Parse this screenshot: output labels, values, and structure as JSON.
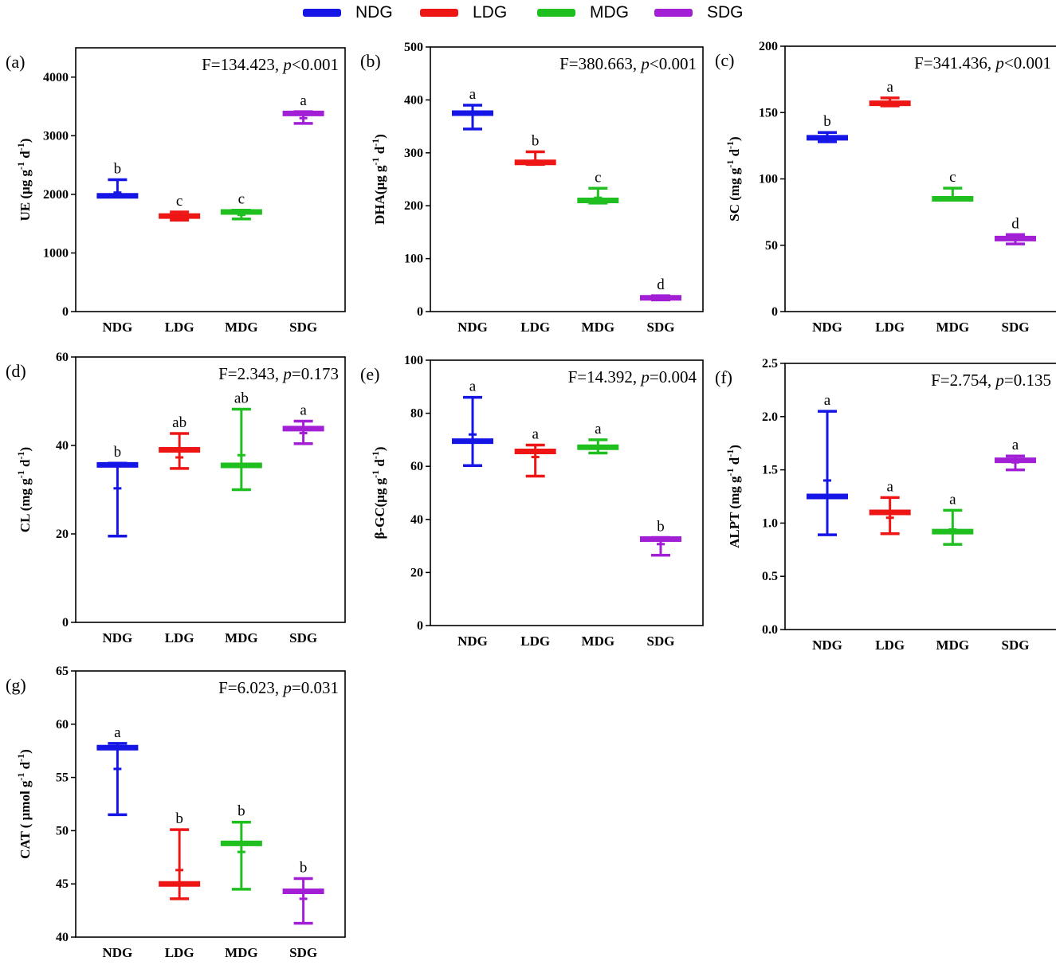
{
  "legend": [
    {
      "label": "NDG",
      "color": "#1515e6"
    },
    {
      "label": "LDG",
      "color": "#ee1515"
    },
    {
      "label": "MDG",
      "color": "#1fbf1f"
    },
    {
      "label": "SDG",
      "color": "#a21fd6"
    }
  ],
  "chart_data": [
    {
      "type": "box",
      "panel": "(a)",
      "stat": {
        "F": "F=134.423, ",
        "p_symbol": "p",
        "p": "<0.001"
      },
      "ylabel": {
        "base": "UE (μg g",
        "exp1": "-1",
        "mid": " d",
        "exp2": "-1",
        "end": ")"
      },
      "ylim": [
        0,
        4500
      ],
      "yticks": [
        0,
        1000,
        2000,
        3000,
        4000
      ],
      "tick_labels": [
        "0",
        "1000",
        "2000",
        "3000",
        "4000"
      ],
      "categories": [
        "NDG",
        "LDG",
        "MDG",
        "SDG"
      ],
      "series": [
        {
          "name": "NDG",
          "min": 1960,
          "mean": 2030,
          "median": 1975,
          "max": 2250,
          "letter": "b"
        },
        {
          "name": "LDG",
          "min": 1560,
          "mean": 1640,
          "median": 1630,
          "max": 1700,
          "letter": "c"
        },
        {
          "name": "MDG",
          "min": 1580,
          "mean": 1650,
          "median": 1700,
          "max": 1730,
          "letter": "c"
        },
        {
          "name": "SDG",
          "min": 3210,
          "mean": 3300,
          "median": 3380,
          "max": 3410,
          "letter": "a"
        }
      ]
    },
    {
      "type": "box",
      "panel": "(b)",
      "stat": {
        "F": "F=380.663, ",
        "p_symbol": "p",
        "p": "<0.001"
      },
      "ylabel": {
        "base": "DHA(μg g",
        "exp1": "-1",
        "mid": " d",
        "exp2": "-1",
        "end": ")"
      },
      "ylim": [
        0,
        500
      ],
      "yticks": [
        0,
        100,
        200,
        300,
        400,
        500
      ],
      "tick_labels": [
        "0",
        "100",
        "200",
        "300",
        "400",
        "500"
      ],
      "categories": [
        "NDG",
        "LDG",
        "MDG",
        "SDG"
      ],
      "series": [
        {
          "name": "NDG",
          "min": 345,
          "mean": 372,
          "median": 375,
          "max": 390,
          "letter": "a"
        },
        {
          "name": "LDG",
          "min": 278,
          "mean": 285,
          "median": 282,
          "max": 302,
          "letter": "b"
        },
        {
          "name": "MDG",
          "min": 205,
          "mean": 215,
          "median": 210,
          "max": 233,
          "letter": "c"
        },
        {
          "name": "SDG",
          "min": 22,
          "mean": 25,
          "median": 26,
          "max": 30,
          "letter": "d"
        }
      ]
    },
    {
      "type": "box",
      "panel": "(c)",
      "stat": {
        "F": "F=341.436, ",
        "p_symbol": "p",
        "p": "<0.001"
      },
      "ylabel": {
        "base": "SC (mg g",
        "exp1": "-1",
        "mid": " d",
        "exp2": "-1",
        "end": ")"
      },
      "ylim": [
        0,
        200
      ],
      "yticks": [
        0,
        50,
        100,
        150,
        200
      ],
      "tick_labels": [
        "0",
        "50",
        "100",
        "150",
        "200"
      ],
      "categories": [
        "NDG",
        "LDG",
        "MDG",
        "SDG"
      ],
      "series": [
        {
          "name": "NDG",
          "min": 128,
          "mean": 131,
          "median": 131,
          "max": 135,
          "letter": "b"
        },
        {
          "name": "LDG",
          "min": 155,
          "mean": 157,
          "median": 157,
          "max": 161,
          "letter": "a"
        },
        {
          "name": "MDG",
          "min": 84,
          "mean": 86,
          "median": 85,
          "max": 93,
          "letter": "c"
        },
        {
          "name": "SDG",
          "min": 51,
          "mean": 54,
          "median": 55,
          "max": 58,
          "letter": "d"
        }
      ]
    },
    {
      "type": "box",
      "panel": "(d)",
      "stat": {
        "F": "F=2.343, ",
        "p_symbol": "p",
        "p": "=0.173"
      },
      "ylabel": {
        "base": "CL (mg g",
        "exp1": "-1",
        "mid": " d",
        "exp2": "-1",
        "end": ")"
      },
      "ylim": [
        0,
        60
      ],
      "yticks": [
        0,
        20,
        40,
        60
      ],
      "tick_labels": [
        "0",
        "20",
        "40",
        "60"
      ],
      "categories": [
        "NDG",
        "LDG",
        "MDG",
        "SDG"
      ],
      "series": [
        {
          "name": "NDG",
          "min": 19.5,
          "mean": 30.3,
          "median": 35.6,
          "max": 36.0,
          "letter": "b"
        },
        {
          "name": "LDG",
          "min": 34.8,
          "mean": 37.3,
          "median": 39.0,
          "max": 42.7,
          "letter": "ab"
        },
        {
          "name": "MDG",
          "min": 30.0,
          "mean": 37.8,
          "median": 35.5,
          "max": 48.2,
          "letter": "ab"
        },
        {
          "name": "SDG",
          "min": 40.4,
          "mean": 42.8,
          "median": 43.8,
          "max": 45.5,
          "letter": "a"
        }
      ]
    },
    {
      "type": "box",
      "panel": "(e)",
      "stat": {
        "F": "F=14.392, ",
        "p_symbol": "p",
        "p": "=0.004"
      },
      "ylabel": {
        "base": "β-GC(μg g",
        "exp1": "-1",
        "mid": " d",
        "exp2": "-1",
        "end": ")"
      },
      "ylim": [
        0,
        100
      ],
      "yticks": [
        0,
        20,
        40,
        60,
        80,
        100
      ],
      "tick_labels": [
        "0",
        "20",
        "40",
        "60",
        "80",
        "100"
      ],
      "categories": [
        "NDG",
        "LDG",
        "MDG",
        "SDG"
      ],
      "series": [
        {
          "name": "NDG",
          "min": 60.3,
          "mean": 72.0,
          "median": 69.5,
          "max": 86.0,
          "letter": "a"
        },
        {
          "name": "LDG",
          "min": 56.3,
          "mean": 63.5,
          "median": 65.6,
          "max": 68.0,
          "letter": "a"
        },
        {
          "name": "MDG",
          "min": 65.0,
          "mean": 67.3,
          "median": 67.2,
          "max": 70.0,
          "letter": "a"
        },
        {
          "name": "SDG",
          "min": 26.5,
          "mean": 30.7,
          "median": 32.6,
          "max": 33.2,
          "letter": "b"
        }
      ]
    },
    {
      "type": "box",
      "panel": "(f)",
      "stat": {
        "F": "F=2.754, ",
        "p_symbol": "p",
        "p": "=0.135"
      },
      "ylabel": {
        "base": "ALPT (mg g",
        "exp1": "-1",
        "mid": " d",
        "exp2": "-1",
        "end": ")"
      },
      "ylim": [
        0,
        2.5
      ],
      "yticks": [
        0,
        0.5,
        1.0,
        1.5,
        2.0,
        2.5
      ],
      "tick_labels": [
        "0.0",
        "0.5",
        "1.0",
        "1.5",
        "2.0",
        "2.5"
      ],
      "categories": [
        "NDG",
        "LDG",
        "MDG",
        "SDG"
      ],
      "series": [
        {
          "name": "NDG",
          "min": 0.89,
          "mean": 1.4,
          "median": 1.25,
          "max": 2.05,
          "letter": "a"
        },
        {
          "name": "LDG",
          "min": 0.9,
          "mean": 1.05,
          "median": 1.1,
          "max": 1.24,
          "letter": "a"
        },
        {
          "name": "MDG",
          "min": 0.8,
          "mean": 0.94,
          "median": 0.92,
          "max": 1.12,
          "letter": "a"
        },
        {
          "name": "SDG",
          "min": 1.5,
          "mean": 1.57,
          "median": 1.59,
          "max": 1.63,
          "letter": "a"
        }
      ]
    },
    {
      "type": "box",
      "panel": "(g)",
      "stat": {
        "F": "F=6.023, ",
        "p_symbol": "p",
        "p": "=0.031"
      },
      "ylabel": {
        "base": "CAT ( μmol g",
        "exp1": "-1",
        "mid": " d",
        "exp2": "-1",
        "end": ")"
      },
      "ylim": [
        40,
        65
      ],
      "yticks": [
        40,
        45,
        50,
        55,
        60,
        65
      ],
      "tick_labels": [
        "40",
        "45",
        "50",
        "55",
        "60",
        "65"
      ],
      "categories": [
        "NDG",
        "LDG",
        "MDG",
        "SDG"
      ],
      "series": [
        {
          "name": "NDG",
          "min": 51.5,
          "mean": 55.8,
          "median": 57.8,
          "max": 58.2,
          "letter": "a"
        },
        {
          "name": "LDG",
          "min": 43.6,
          "mean": 46.3,
          "median": 45.0,
          "max": 50.1,
          "letter": "b"
        },
        {
          "name": "MDG",
          "min": 44.5,
          "mean": 48.0,
          "median": 48.8,
          "max": 50.8,
          "letter": "b"
        },
        {
          "name": "SDG",
          "min": 41.3,
          "mean": 43.6,
          "median": 44.3,
          "max": 45.5,
          "letter": "b"
        }
      ]
    }
  ]
}
